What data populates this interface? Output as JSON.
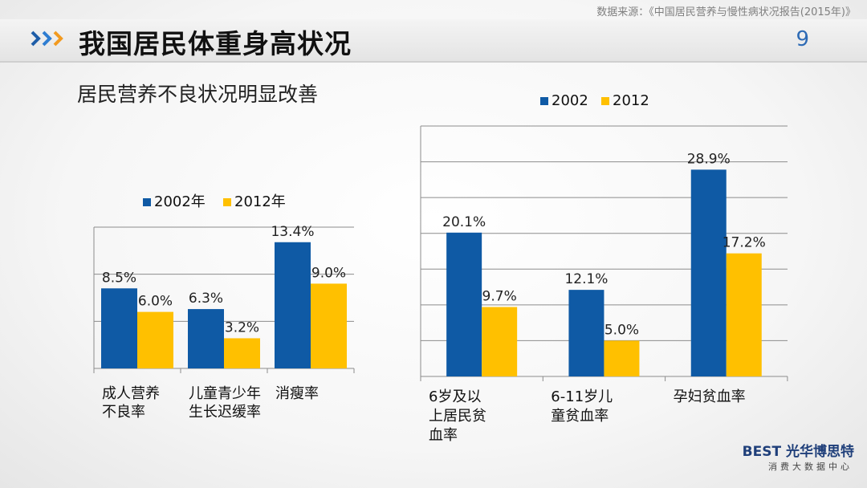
{
  "source": "数据来源：《中国居民营养与慢性病状况报告(2015年)》",
  "title": "我国居民体重身高状况",
  "page_number": "9",
  "subtitle": "居民营养不良状况明显改善",
  "colors": {
    "series_2002": "#0f5aa5",
    "series_2012": "#ffc000",
    "accent": "#2e6bb5"
  },
  "chart_data": [
    {
      "type": "bar",
      "categories": [
        "成人营养不良率",
        "儿童青少年生长迟缓率",
        "消瘦率"
      ],
      "category_lines": [
        [
          "成人营养",
          "不良率"
        ],
        [
          "儿童青少年",
          "生长迟缓率"
        ],
        [
          "消瘦率"
        ]
      ],
      "series": [
        {
          "name": "2002年",
          "values": [
            8.5,
            6.3,
            13.4
          ],
          "labels": [
            "8.5%",
            "6.3%",
            "13.4%"
          ]
        },
        {
          "name": "2012年",
          "values": [
            6.0,
            3.2,
            9.0
          ],
          "labels": [
            "6.0%",
            "3.2%",
            "9.0%"
          ]
        }
      ],
      "ylim": [
        0,
        15
      ],
      "grid": true,
      "legend": "top"
    },
    {
      "type": "bar",
      "categories": [
        "6岁及以上居民贫血率",
        "6-11岁儿童贫血率",
        "孕妇贫血率"
      ],
      "category_lines": [
        [
          "6岁及以",
          "上居民贫",
          "血率"
        ],
        [
          "6-11岁儿",
          "童贫血率"
        ],
        [
          "孕妇贫血率"
        ]
      ],
      "series": [
        {
          "name": "2002",
          "values": [
            20.1,
            12.1,
            28.9
          ],
          "labels": [
            "20.1%",
            "12.1%",
            "28.9%"
          ]
        },
        {
          "name": "2012",
          "values": [
            9.7,
            5.0,
            17.2
          ],
          "labels": [
            "9.7%",
            "5.0%",
            "17.2%"
          ]
        }
      ],
      "ylim": [
        0,
        35
      ],
      "grid": true,
      "legend": "top"
    }
  ],
  "logo": {
    "brand_mark": "BEST",
    "brand_name": "光华博思特",
    "tagline": "消费大数据中心"
  }
}
